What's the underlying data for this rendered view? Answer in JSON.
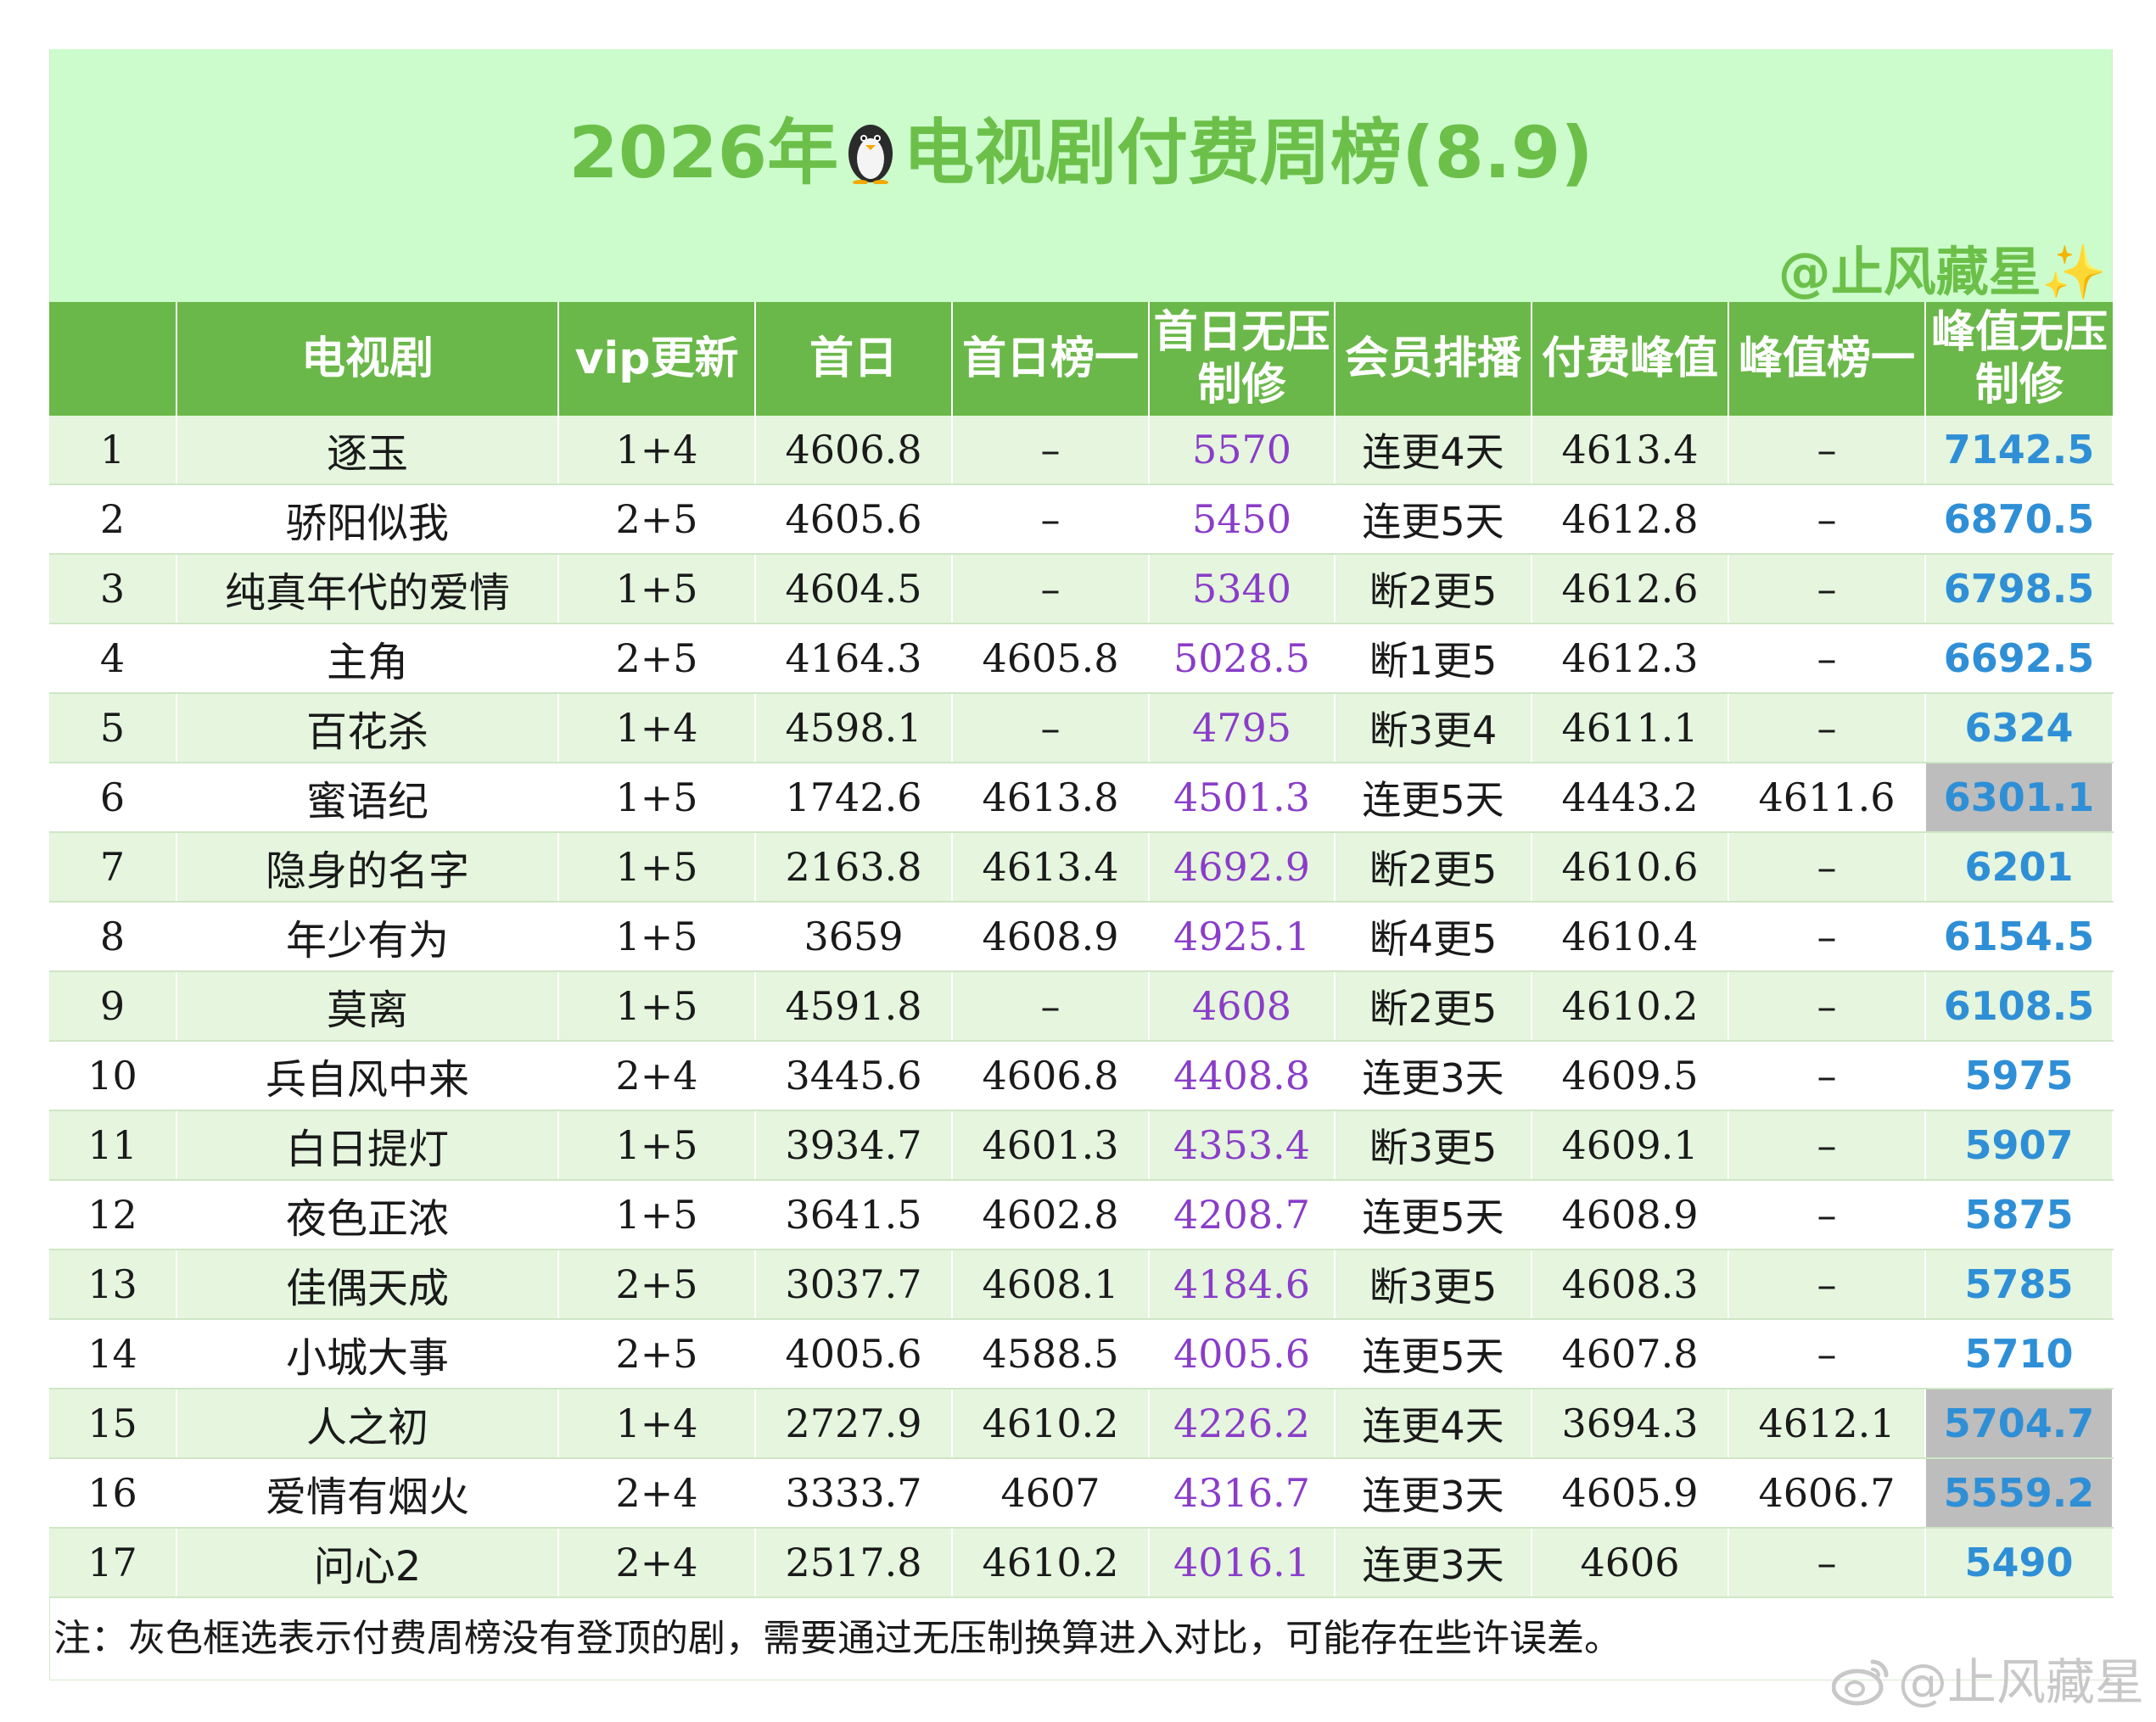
{
  "title": "2026年🐧电视剧付费周榜(8.9)",
  "title_parts": {
    "before": "2026年",
    "after": "电视剧付费周榜(8.9)"
  },
  "credit": "@止风藏星",
  "headers": [
    "",
    "电视剧",
    "vip更新",
    "首日",
    "首日榜一",
    "首日无压制修",
    "会员排播",
    "付费峰值",
    "峰值榜一",
    "峰值无压制修"
  ],
  "rows": [
    {
      "rank": "1",
      "name": "逐玉",
      "vip": "1+4",
      "first_day": "4606.8",
      "first_day_top": "–",
      "first_day_adj": "5570",
      "schedule": "连更4天",
      "peak": "4613.4",
      "peak_top": "–",
      "peak_adj": "7142.5"
    },
    {
      "rank": "2",
      "name": "骄阳似我",
      "vip": "2+5",
      "first_day": "4605.6",
      "first_day_top": "–",
      "first_day_adj": "5450",
      "schedule": "连更5天",
      "peak": "4612.8",
      "peak_top": "–",
      "peak_adj": "6870.5"
    },
    {
      "rank": "3",
      "name": "纯真年代的爱情",
      "vip": "1+5",
      "first_day": "4604.5",
      "first_day_top": "–",
      "first_day_adj": "5340",
      "schedule": "断2更5",
      "peak": "4612.6",
      "peak_top": "–",
      "peak_adj": "6798.5"
    },
    {
      "rank": "4",
      "name": "主角",
      "vip": "2+5",
      "first_day": "4164.3",
      "first_day_top": "4605.8",
      "first_day_adj": "5028.5",
      "schedule": "断1更5",
      "peak": "4612.3",
      "peak_top": "–",
      "peak_adj": "6692.5"
    },
    {
      "rank": "5",
      "name": "百花杀",
      "vip": "1+4",
      "first_day": "4598.1",
      "first_day_top": "–",
      "first_day_adj": "4795",
      "schedule": "断3更4",
      "peak": "4611.1",
      "peak_top": "–",
      "peak_adj": "6324"
    },
    {
      "rank": "6",
      "name": "蜜语纪",
      "vip": "1+5",
      "first_day": "1742.6",
      "first_day_top": "4613.8",
      "first_day_adj": "4501.3",
      "schedule": "连更5天",
      "peak": "4443.2",
      "peak_top": "4611.6",
      "peak_adj": "6301.1"
    },
    {
      "rank": "7",
      "name": "隐身的名字",
      "vip": "1+5",
      "first_day": "2163.8",
      "first_day_top": "4613.4",
      "first_day_adj": "4692.9",
      "schedule": "断2更5",
      "peak": "4610.6",
      "peak_top": "–",
      "peak_adj": "6201"
    },
    {
      "rank": "8",
      "name": "年少有为",
      "vip": "1+5",
      "first_day": "3659",
      "first_day_top": "4608.9",
      "first_day_adj": "4925.1",
      "schedule": "断4更5",
      "peak": "4610.4",
      "peak_top": "–",
      "peak_adj": "6154.5"
    },
    {
      "rank": "9",
      "name": "莫离",
      "vip": "1+5",
      "first_day": "4591.8",
      "first_day_top": "–",
      "first_day_adj": "4608",
      "schedule": "断2更5",
      "peak": "4610.2",
      "peak_top": "–",
      "peak_adj": "6108.5"
    },
    {
      "rank": "10",
      "name": "兵自风中来",
      "vip": "2+4",
      "first_day": "3445.6",
      "first_day_top": "4606.8",
      "first_day_adj": "4408.8",
      "schedule": "连更3天",
      "peak": "4609.5",
      "peak_top": "–",
      "peak_adj": "5975"
    },
    {
      "rank": "11",
      "name": "白日提灯",
      "vip": "1+5",
      "first_day": "3934.7",
      "first_day_top": "4601.3",
      "first_day_adj": "4353.4",
      "schedule": "断3更5",
      "peak": "4609.1",
      "peak_top": "–",
      "peak_adj": "5907"
    },
    {
      "rank": "12",
      "name": "夜色正浓",
      "vip": "1+5",
      "first_day": "3641.5",
      "first_day_top": "4602.8",
      "first_day_adj": "4208.7",
      "schedule": "连更5天",
      "peak": "4608.9",
      "peak_top": "–",
      "peak_adj": "5875"
    },
    {
      "rank": "13",
      "name": "佳偶天成",
      "vip": "2+5",
      "first_day": "3037.7",
      "first_day_top": "4608.1",
      "first_day_adj": "4184.6",
      "schedule": "断3更5",
      "peak": "4608.3",
      "peak_top": "–",
      "peak_adj": "5785"
    },
    {
      "rank": "14",
      "name": "小城大事",
      "vip": "2+5",
      "first_day": "4005.6",
      "first_day_top": "4588.5",
      "first_day_adj": "4005.6",
      "schedule": "连更5天",
      "peak": "4607.8",
      "peak_top": "–",
      "peak_adj": "5710"
    },
    {
      "rank": "15",
      "name": "人之初",
      "vip": "1+4",
      "first_day": "2727.9",
      "first_day_top": "4610.2",
      "first_day_adj": "4226.2",
      "schedule": "连更4天",
      "peak": "3694.3",
      "peak_top": "4612.1",
      "peak_adj": "5704.7"
    },
    {
      "rank": "16",
      "name": "爱情有烟火",
      "vip": "2+4",
      "first_day": "3333.7",
      "first_day_top": "4607",
      "first_day_adj": "4316.7",
      "schedule": "连更3天",
      "peak": "4605.9",
      "peak_top": "4606.7",
      "peak_adj": "5559.2"
    },
    {
      "rank": "17",
      "name": "问心2",
      "vip": "2+4",
      "first_day": "2517.8",
      "first_day_top": "4610.2",
      "first_day_adj": "4016.1",
      "schedule": "连更3天",
      "peak": "4606",
      "peak_top": "–",
      "peak_adj": "5490"
    }
  ],
  "highlighted_rows": [
    "6",
    "15",
    "16"
  ],
  "note": "注：灰色框选表示付费周榜没有登顶的剧，需要通过无压制换算进入对比，可能存在些许误差。",
  "watermark": "@止风藏星",
  "colors": {
    "title_band": "#ccfccc",
    "title_text": "#6cc04a",
    "header_bg": "#6ab849",
    "row_alt": "#e5f5de",
    "first_day_adj_text": "#8a3dc8",
    "peak_adj_text": "#2f8fd6",
    "highlight_gray": "#bdbdbd"
  },
  "icons": [
    "penguin-icon",
    "sparkles-icon",
    "weibo-logo-icon"
  ]
}
